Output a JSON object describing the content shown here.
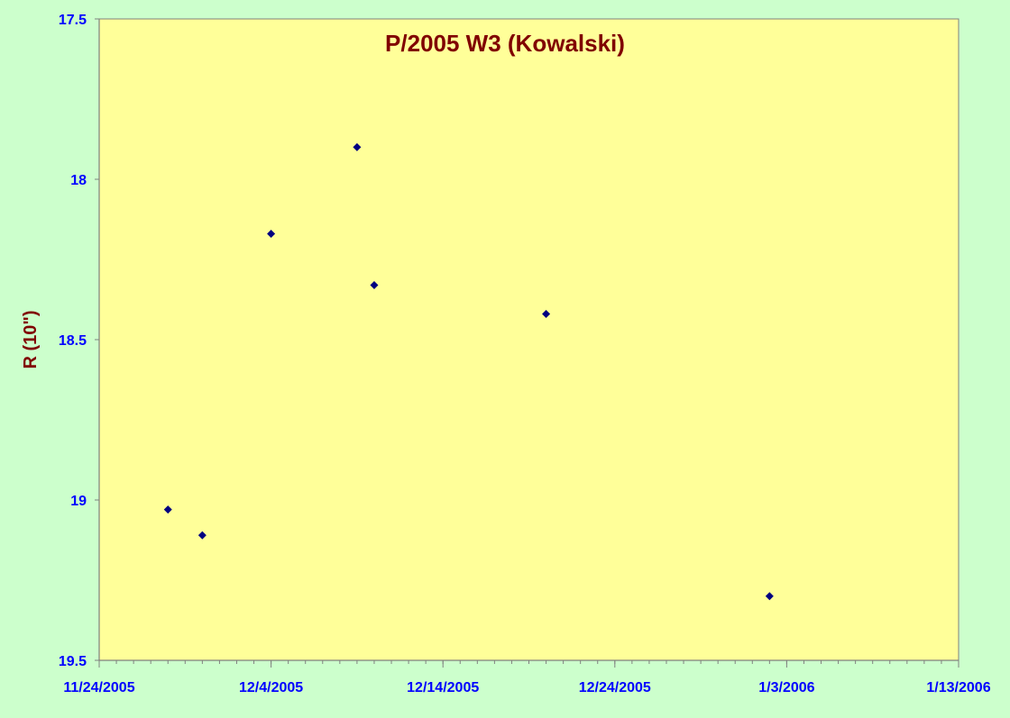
{
  "colors": {
    "background": "#ccffcc",
    "plot_area": "#ffff99",
    "title": "#800000",
    "ylabel": "#800000",
    "tick_labels": "#0000ff",
    "marker": "#000080",
    "axis": "#808080"
  },
  "chart_data": {
    "type": "scatter",
    "title": "P/2005 W3 (Kowalski)",
    "xlabel": "",
    "ylabel": "R (10\")",
    "x_axis": "date",
    "xlim": [
      "2005-11-24",
      "2006-01-13"
    ],
    "ylim": [
      17.5,
      19.5
    ],
    "y_inverted": true,
    "grid": false,
    "legend": "none",
    "marker": "diamond",
    "x_ticks": [
      "2005-11-24",
      "2005-12-04",
      "2005-12-14",
      "2005-12-24",
      "2006-01-03",
      "2006-01-13"
    ],
    "x_tick_labels": [
      "11/24/2005",
      "12/4/2005",
      "12/14/2005",
      "12/24/2005",
      "1/3/2006",
      "1/13/2006"
    ],
    "y_ticks": [
      17.5,
      18,
      18.5,
      19,
      19.5
    ],
    "y_tick_labels": [
      "17.5",
      "18",
      "18.5",
      "19",
      "19.5"
    ],
    "series": [
      {
        "points": [
          {
            "x": "2005-11-28",
            "y": 19.03
          },
          {
            "x": "2005-11-30",
            "y": 19.11
          },
          {
            "x": "2005-12-04",
            "y": 18.17
          },
          {
            "x": "2005-12-09",
            "y": 17.9
          },
          {
            "x": "2005-12-10",
            "y": 18.33
          },
          {
            "x": "2005-12-20",
            "y": 18.42
          },
          {
            "x": "2006-01-02",
            "y": 19.3
          }
        ]
      }
    ]
  }
}
